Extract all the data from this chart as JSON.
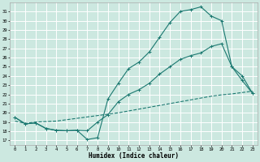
{
  "xlabel": "Humidex (Indice chaleur)",
  "bg_color": "#cce8e0",
  "grid_color": "#ffffff",
  "line_color": "#1a7870",
  "xlim": [
    -0.5,
    23.5
  ],
  "ylim": [
    16.5,
    32.0
  ],
  "xticks": [
    0,
    1,
    2,
    3,
    4,
    5,
    6,
    7,
    8,
    9,
    10,
    11,
    12,
    13,
    14,
    15,
    16,
    17,
    18,
    19,
    20,
    21,
    22,
    23
  ],
  "yticks": [
    17,
    18,
    19,
    20,
    21,
    22,
    23,
    24,
    25,
    26,
    27,
    28,
    29,
    30,
    31
  ],
  "line1_x": [
    0,
    1,
    2,
    3,
    4,
    5,
    6,
    7,
    8,
    9,
    10,
    11,
    12,
    13,
    14,
    15,
    16,
    17,
    18,
    19,
    20,
    21,
    22,
    23
  ],
  "line1_y": [
    19.1,
    18.85,
    19.0,
    19.05,
    19.1,
    19.25,
    19.4,
    19.55,
    19.7,
    19.85,
    20.0,
    20.2,
    20.4,
    20.6,
    20.8,
    21.0,
    21.2,
    21.4,
    21.6,
    21.8,
    21.95,
    22.05,
    22.2,
    22.35
  ],
  "line2_x": [
    0,
    1,
    2,
    3,
    4,
    5,
    6,
    7,
    8,
    9,
    10,
    11,
    12,
    13,
    14,
    15,
    16,
    17,
    18,
    19,
    20,
    21,
    22,
    23
  ],
  "line2_y": [
    19.5,
    18.8,
    18.9,
    18.3,
    18.1,
    18.05,
    18.1,
    18.05,
    19.0,
    19.8,
    21.2,
    22.0,
    22.5,
    23.2,
    24.2,
    25.0,
    25.8,
    26.2,
    26.5,
    27.2,
    27.5,
    25.0,
    24.0,
    22.1
  ],
  "line3_x": [
    0,
    1,
    2,
    3,
    4,
    5,
    6,
    7,
    8,
    9,
    10,
    11,
    12,
    13,
    14,
    15,
    16,
    17,
    18,
    19,
    20,
    21,
    22,
    23
  ],
  "line3_y": [
    19.5,
    18.8,
    18.9,
    18.3,
    18.1,
    18.05,
    18.1,
    17.1,
    17.3,
    21.5,
    23.2,
    24.8,
    25.5,
    26.6,
    28.2,
    29.8,
    31.0,
    31.2,
    31.5,
    30.5,
    30.0,
    25.0,
    23.5,
    22.1
  ]
}
